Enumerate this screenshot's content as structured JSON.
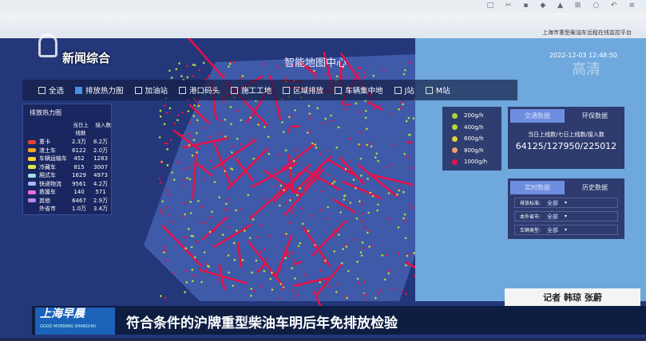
{
  "browser": {
    "tools": "□ ✂ ▪ ◆ ▲ ⊞ ○ ↶ ≡"
  },
  "header": {
    "platform": "上海市重型柴油车远程在线监控平台",
    "datetime": "2022-12-03 12:48:50",
    "title": "智能地图中心"
  },
  "channel": {
    "logo": "新闻综合",
    "watermark": "高清"
  },
  "filters": [
    {
      "label": "全选",
      "checked": false
    },
    {
      "label": "排放热力图",
      "checked": true
    },
    {
      "label": "加油站",
      "checked": false
    },
    {
      "label": "港口码头",
      "checked": false
    },
    {
      "label": "施工工地",
      "checked": false
    },
    {
      "label": "区域排放",
      "checked": false
    },
    {
      "label": "车辆集中地",
      "checked": false
    },
    {
      "label": "J站",
      "checked": false
    },
    {
      "label": "M站",
      "checked": false
    }
  ],
  "left_panel": {
    "title": "排放热力图",
    "col1": "当日上线数",
    "col2": "接入数",
    "rows": [
      {
        "name": "重卡",
        "online": "2.3万",
        "total": "8.2万",
        "color": "#e8452f"
      },
      {
        "name": "渣土车",
        "online": "6122",
        "total": "2.0万",
        "color": "#f5a623"
      },
      {
        "name": "车辆运输车",
        "online": "452",
        "total": "1283",
        "color": "#f5d23b"
      },
      {
        "name": "冷藏车",
        "online": "815",
        "total": "3007",
        "color": "#d9e84a"
      },
      {
        "name": "厢式车",
        "online": "1629",
        "total": "4973",
        "color": "#9ee0f0"
      },
      {
        "name": "快递物流",
        "online": "9561",
        "total": "4.2万",
        "color": "#a8b8ff"
      },
      {
        "name": "救援车",
        "online": "140",
        "total": "571",
        "color": "#e86ee0"
      },
      {
        "name": "其他",
        "online": "6467",
        "total": "2.9万",
        "color": "#b68cf0"
      },
      {
        "name": "外省市",
        "online": "1.0万",
        "total": "3.4万",
        "color": ""
      }
    ]
  },
  "legend": [
    {
      "label": "200g/h",
      "color": "#a8d83a"
    },
    {
      "label": "400g/h",
      "color": "#b8d83a"
    },
    {
      "label": "600g/h",
      "color": "#e6d23a"
    },
    {
      "label": "800g/h",
      "color": "#f2a070"
    },
    {
      "label": "1000g/h",
      "color": "#e8104a"
    }
  ],
  "traffic_card": {
    "tabs": [
      "交通数据",
      "环保数据"
    ],
    "label": "当日上线数/七日上线数/接入数",
    "value": "64125/127950/225012"
  },
  "filter_card": {
    "tabs": [
      "实时数据",
      "历史数据"
    ],
    "selects": [
      {
        "label": "排放标准:",
        "value": "全部"
      },
      {
        "label": "本外省市:",
        "value": "全部"
      },
      {
        "label": "车辆类型:",
        "value": "全部"
      }
    ]
  },
  "news": {
    "reporter": "记者 韩琼 张蔚",
    "show": "上海早晨",
    "show_en": "GOOD MORNING SHANGHAI",
    "caption": "符合条件的沪牌重型柴油车明后年免排放检验"
  }
}
